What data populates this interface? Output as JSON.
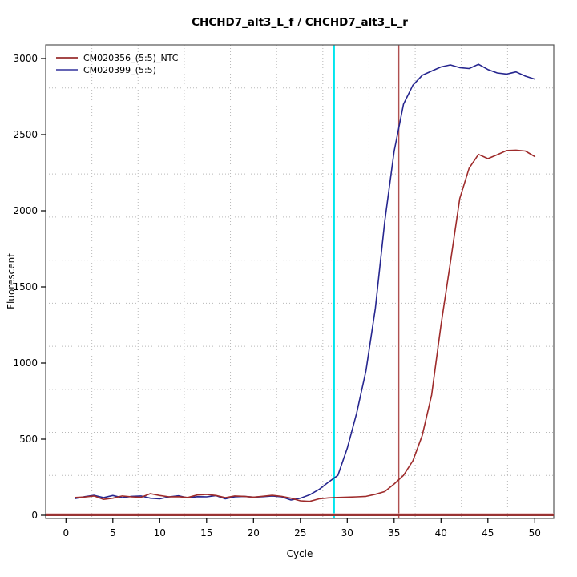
{
  "figure": {
    "title": "CHCHD7_alt3_L_f / CHCHD7_alt3_L_r",
    "background": "#ffffff"
  },
  "chart_data": {
    "type": "line",
    "title": "CHCHD7_alt3_L_f / CHCHD7_alt3_L_r",
    "xlabel": "Cycle",
    "ylabel": "Fluorescent",
    "xlim": [
      0,
      50
    ],
    "ylim": [
      0,
      3000
    ],
    "x_ticks": [
      0,
      5,
      10,
      15,
      20,
      25,
      30,
      35,
      40,
      45,
      50
    ],
    "y_ticks": [
      0,
      500,
      1000,
      1500,
      2000,
      2500,
      3000
    ],
    "grid": {
      "style": "dotted",
      "x_divisions": 11,
      "y_divisions": 11,
      "color": "#b8b8b8"
    },
    "x": [
      1,
      2,
      3,
      4,
      5,
      6,
      7,
      8,
      9,
      10,
      11,
      12,
      13,
      14,
      15,
      16,
      17,
      18,
      19,
      20,
      21,
      22,
      23,
      24,
      25,
      26,
      27,
      28,
      29,
      30,
      31,
      32,
      33,
      34,
      35,
      36,
      37,
      38,
      39,
      40,
      41,
      42,
      43,
      44,
      45,
      46,
      47,
      48,
      49,
      50
    ],
    "series": [
      {
        "name": "CM020356_(5:5)",
        "color": "#9E2B2B",
        "values": [
          117,
          120,
          127,
          104,
          112,
          127,
          121,
          118,
          142,
          130,
          121,
          122,
          117,
          133,
          137,
          130,
          116,
          127,
          124,
          119,
          125,
          131,
          124,
          112,
          95,
          91,
          108,
          114,
          117,
          119,
          121,
          124,
          138,
          156,
          205,
          262,
          358,
          525,
          790,
          1250,
          1660,
          2080,
          2280,
          2370,
          2342,
          2368,
          2395,
          2398,
          2392,
          2356
        ]
      },
      {
        "name": "CM020399_(5:5)",
        "color": "#26268F",
        "values": [
          110,
          122,
          131,
          116,
          130,
          116,
          124,
          127,
          112,
          108,
          121,
          128,
          114,
          122,
          121,
          129,
          108,
          121,
          124,
          119,
          122,
          127,
          121,
          100,
          112,
          135,
          170,
          218,
          262,
          440,
          670,
          950,
          1360,
          1930,
          2390,
          2700,
          2825,
          2890,
          2918,
          2945,
          2958,
          2940,
          2934,
          2962,
          2928,
          2905,
          2898,
          2912,
          2884,
          2864
        ]
      }
    ],
    "annotations": {
      "vlines": [
        {
          "name": "ct-line-CM020399",
          "x": 28.6,
          "color": "#00E5EE"
        },
        {
          "name": "ct-line-CM020356",
          "x": 35.5,
          "color": "#B05050"
        }
      ],
      "hlines": [
        {
          "name": "ntc-baseline",
          "y": 0,
          "color": "#993333",
          "halo": "#E2A4A4"
        }
      ]
    },
    "legend": {
      "position": "top-left",
      "items": [
        {
          "label": "CM020356_(5:5)_NTC",
          "color": "#A54848"
        },
        {
          "label": "CM020399_(5:5)",
          "color": "#6565B5"
        }
      ]
    }
  }
}
